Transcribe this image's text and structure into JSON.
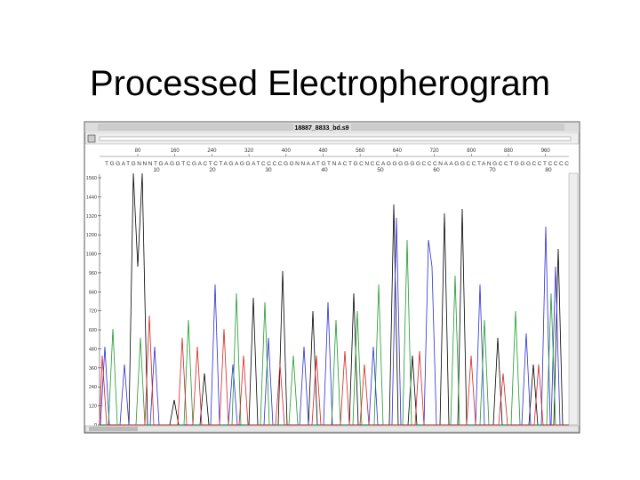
{
  "title": "Processed Electropherogram",
  "window": {
    "title": "18887_8833_bd.s9",
    "ruler": [
      "80",
      "160",
      "240",
      "320",
      "400",
      "480",
      "560",
      "640",
      "720",
      "800",
      "880",
      "960"
    ],
    "positions": [
      "10",
      "20",
      "30",
      "40",
      "50",
      "60",
      "70",
      "80"
    ],
    "sequence": "TGGATGNNNTGAGGTCGACTCTAGAGGATCCCCGGNNAATGTNACTGCNCCAGGGGGGCCCNAAGGCCTANGCCTGGGCCTCCCC",
    "y_ticks": [
      "1560",
      "1440",
      "1320",
      "1200",
      "1080",
      "960",
      "840",
      "720",
      "600",
      "480",
      "360",
      "240",
      "120",
      "0"
    ]
  }
}
